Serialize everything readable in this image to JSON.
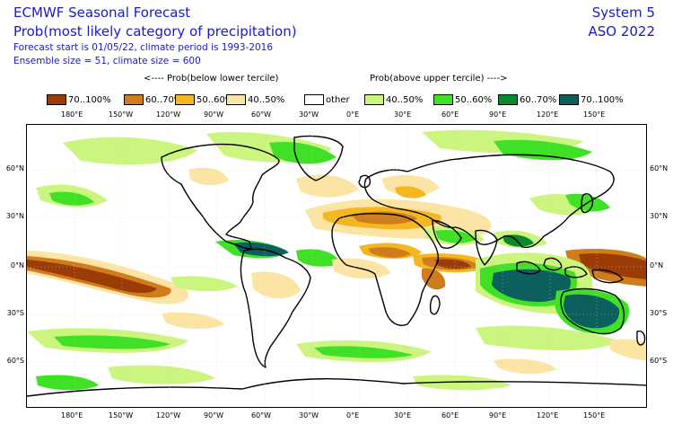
{
  "header": {
    "title": "ECMWF Seasonal Forecast",
    "subtitle": "Prob(most likely category of precipitation)",
    "forecast_line": "Forecast start is 01/05/22, climate period is 1993-2016",
    "ensemble_line": "Ensemble size = 51, climate size = 600",
    "system": "System 5",
    "period": "ASO 2022"
  },
  "legend": {
    "below_label": "<---- Prob(below lower tercile)",
    "above_label": "Prob(above upper tercile) ---->",
    "items": [
      {
        "label": "70..100%",
        "color": "#9b3c07"
      },
      {
        "label": "60..70%",
        "color": "#cf7d1b"
      },
      {
        "label": "50..60%",
        "color": "#f4b71f"
      },
      {
        "label": "40..50%",
        "color": "#fbe4a4"
      },
      {
        "label": "other",
        "color": "#ffffff"
      },
      {
        "label": "40..50%",
        "color": "#ccf57f"
      },
      {
        "label": "50..60%",
        "color": "#3fe026"
      },
      {
        "label": "60..70%",
        "color": "#0a8a2c"
      },
      {
        "label": "70..100%",
        "color": "#0b5f5c"
      }
    ]
  },
  "axes": {
    "lon_labels": [
      "180°E",
      "150°W",
      "120°W",
      "90°W",
      "60°W",
      "30°W",
      "0°E",
      "30°E",
      "60°E",
      "90°E",
      "120°E",
      "150°E"
    ],
    "lat_labels": [
      "60°N",
      "30°N",
      "0°N",
      "30°S",
      "60°S"
    ]
  }
}
